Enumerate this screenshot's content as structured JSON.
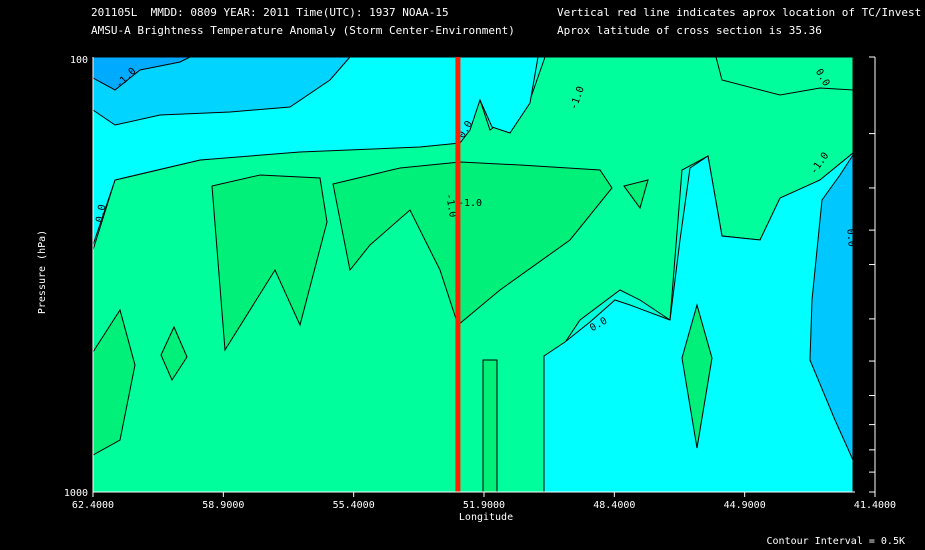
{
  "header": {
    "line1_left": "201105L  MMDD: 0809 YEAR: 2011 Time(UTC): 1937 NOAA-15",
    "line2_left": "AMSU-A Brightness Temperature Anomaly (Storm Center-Environment)",
    "line1_right": "Vertical red line indicates aprox location of TC/Invest",
    "line2_right": "Aprox latitude of cross section is 35.36"
  },
  "footer": {
    "contour_interval": "Contour Interval = 0.5K"
  },
  "chart_data": {
    "type": "heatmap",
    "title": "AMSU-A Brightness Temperature Anomaly (Storm Center-Environment)",
    "xlabel": "Longitude",
    "ylabel": "Pressure (hPa)",
    "x_ticks": [
      "62.4000",
      "58.9000",
      "55.4000",
      "51.9000",
      "48.4000",
      "44.9000",
      "41.4000"
    ],
    "x_range": [
      62.4,
      41.4
    ],
    "y_ticks": [
      "100",
      "1000"
    ],
    "y_range": [
      100,
      1000
    ],
    "y_scale": "log",
    "tc_longitude": 52.6,
    "contour_interval_K": 0.5,
    "contour_labels": [
      "-1.0",
      "0.0",
      "-1.0",
      "0.0",
      "-1.0",
      "0.0",
      "0.0",
      "-1.0",
      "0.0",
      "-1.0"
    ],
    "colors": {
      "level_-1.5": "#00c8ff",
      "level_-1.0": "#00ffff",
      "level_-0.5": "#00ffd8",
      "level_0.0": "#00ff9c",
      "level_0.5": "#00f07a",
      "tc_line": "#ff2200"
    }
  }
}
